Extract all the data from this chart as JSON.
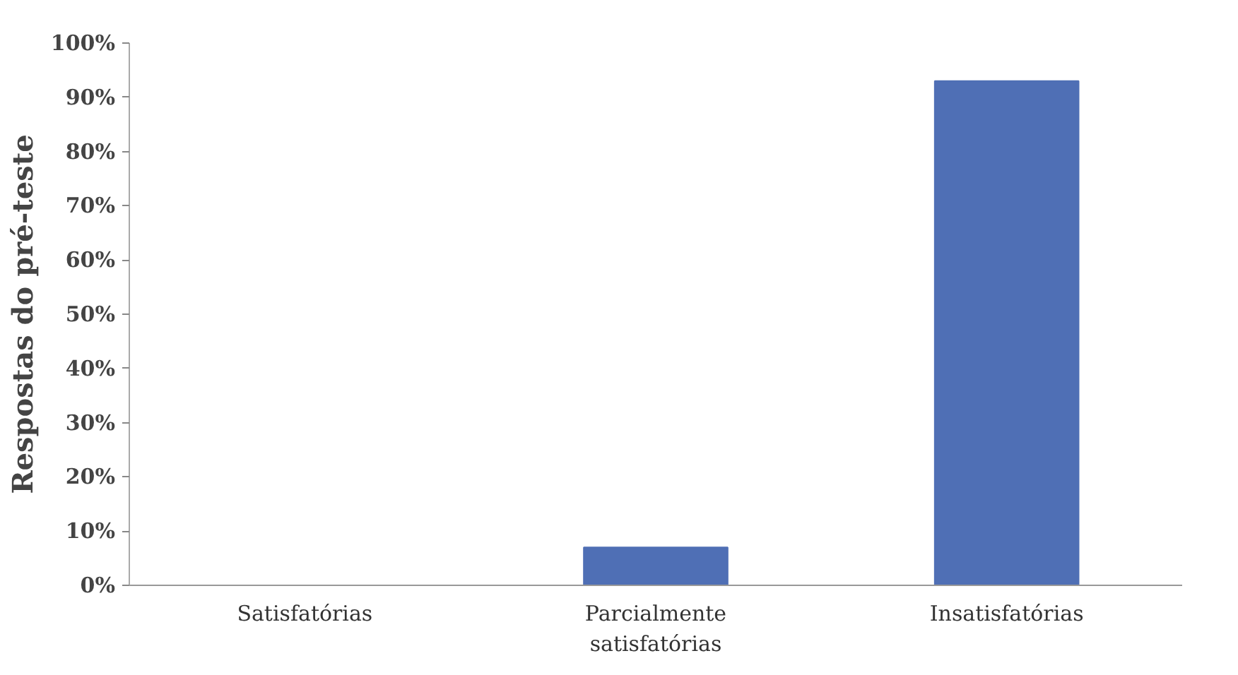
{
  "chart_data": {
    "type": "bar",
    "ylabel": "Respostas do pré-teste",
    "categories": [
      "Satisfatórias",
      "Parcialmente\nsatisfatórias",
      "Insatisfatórias"
    ],
    "values": [
      0,
      7,
      93
    ],
    "color": "#4f6fb5",
    "ylim": [
      0,
      100
    ],
    "yticks": [
      {
        "value": 0,
        "label": "0%"
      },
      {
        "value": 10,
        "label": "10%"
      },
      {
        "value": 20,
        "label": "20%"
      },
      {
        "value": 30,
        "label": "30%"
      },
      {
        "value": 40,
        "label": "40%"
      },
      {
        "value": 50,
        "label": "50%"
      },
      {
        "value": 60,
        "label": "60%"
      },
      {
        "value": 70,
        "label": "70%"
      },
      {
        "value": 80,
        "label": "80%"
      },
      {
        "value": 90,
        "label": "90%"
      },
      {
        "value": 100,
        "label": "100%"
      }
    ],
    "grid": false
  }
}
